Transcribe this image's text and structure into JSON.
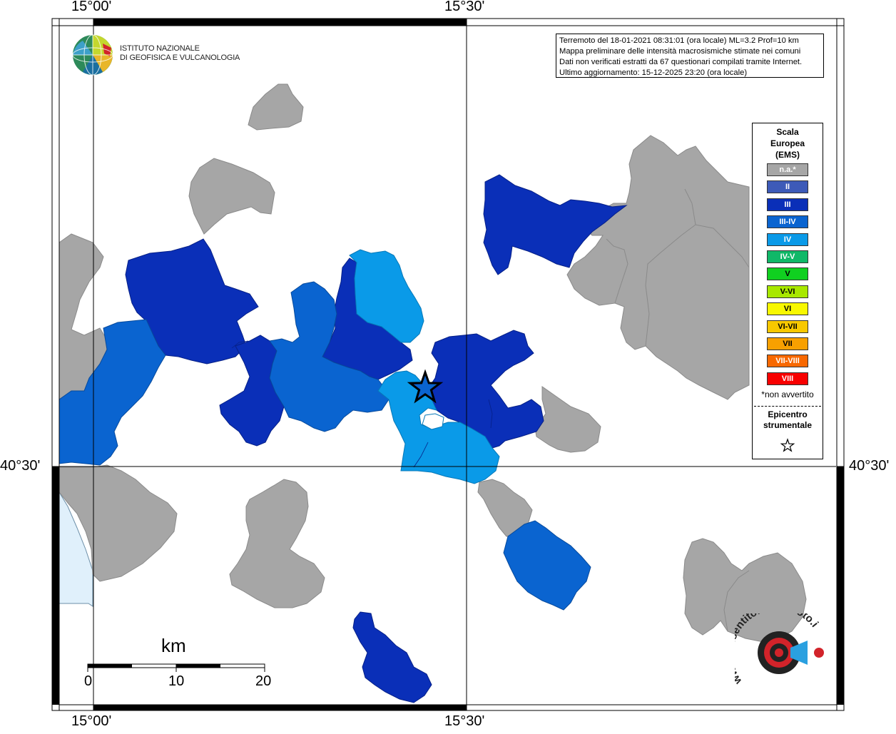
{
  "map": {
    "ticks": {
      "top": [
        "15°00'",
        "15°30'"
      ],
      "bottom": [
        "15°00'",
        "15°30'"
      ],
      "left": "40°30'",
      "right": "40°30'"
    }
  },
  "institute": {
    "line1": "ISTITUTO NAZIONALE",
    "line2": "DI GEOFISICA E VULCANOLOGIA"
  },
  "info": {
    "line1": "Terremoto del 18-01-2021 08:31:01 (ora locale) ML=3.2 Prof=10 km",
    "line2": "Mappa preliminare delle intensità macrosismiche stimate nei comuni",
    "line3": "Dati non verificati estratti da 67 questionari compilati tramite Internet.",
    "line4": "Ultimo aggiornamento: 15-12-2025 23:20 (ora locale)"
  },
  "legend": {
    "title_line1": "Scala",
    "title_line2": "Europea",
    "title_line3": "(EMS)",
    "items": [
      {
        "label": "n.a.*",
        "color": "#a6a6a6",
        "text_color": "#ffffff"
      },
      {
        "label": "II",
        "color": "#3d5ab8",
        "text_color": "#ffffff"
      },
      {
        "label": "III",
        "color": "#0a2fb8",
        "text_color": "#ffffff"
      },
      {
        "label": "III-IV",
        "color": "#0a64d0",
        "text_color": "#ffffff"
      },
      {
        "label": "IV",
        "color": "#0a9ae8",
        "text_color": "#ffffff"
      },
      {
        "label": "IV-V",
        "color": "#10b868",
        "text_color": "#ffffff"
      },
      {
        "label": "V",
        "color": "#10d020",
        "text_color": "#000000"
      },
      {
        "label": "V-VI",
        "color": "#a8e800",
        "text_color": "#000000"
      },
      {
        "label": "VI",
        "color": "#f8f800",
        "text_color": "#000000"
      },
      {
        "label": "VI-VII",
        "color": "#f8c800",
        "text_color": "#000000"
      },
      {
        "label": "VII",
        "color": "#f8a000",
        "text_color": "#000000"
      },
      {
        "label": "VII-VIII",
        "color": "#f86800",
        "text_color": "#ffffff"
      },
      {
        "label": "VIII",
        "color": "#f80000",
        "text_color": "#ffffff"
      }
    ],
    "note": "*non avvertito",
    "epicenter_line1": "Epicentro",
    "epicenter_line2": "strumentale"
  },
  "scalebar": {
    "unit": "km",
    "labels": [
      "0",
      "10",
      "20"
    ]
  },
  "site_logo": {
    "text": "www.haisentitoilterremoto.it"
  }
}
